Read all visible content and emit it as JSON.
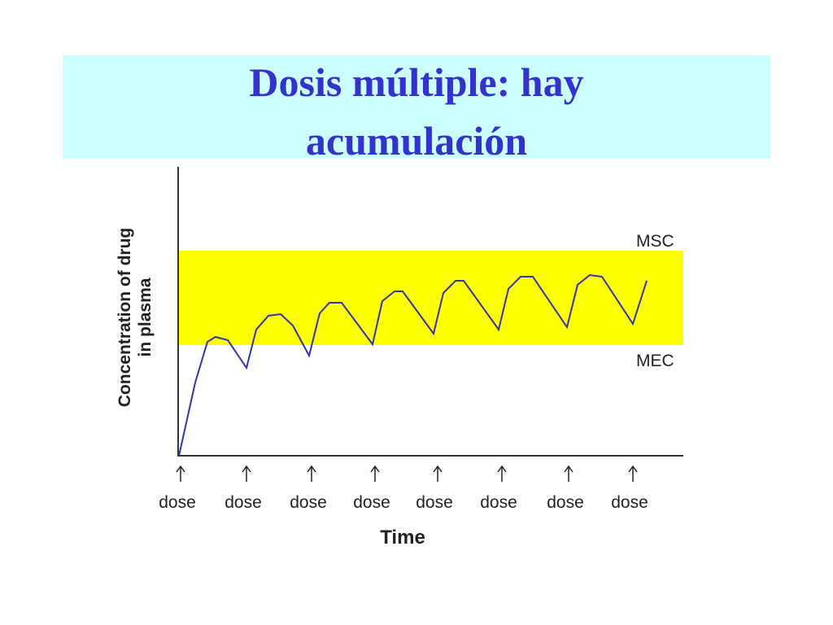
{
  "title": {
    "line1": "Dosis múltiple: hay",
    "line2": "acumulación"
  },
  "figure": {
    "y_label": {
      "line1": "Concentration of drug",
      "line2": "in plasma"
    },
    "x_label": "Time",
    "upper_band_label": "MSC",
    "lower_band_label": "MEC",
    "doses": [
      "dose",
      "dose",
      "dose",
      "dose",
      "dose",
      "dose",
      "dose",
      "dose"
    ]
  }
}
